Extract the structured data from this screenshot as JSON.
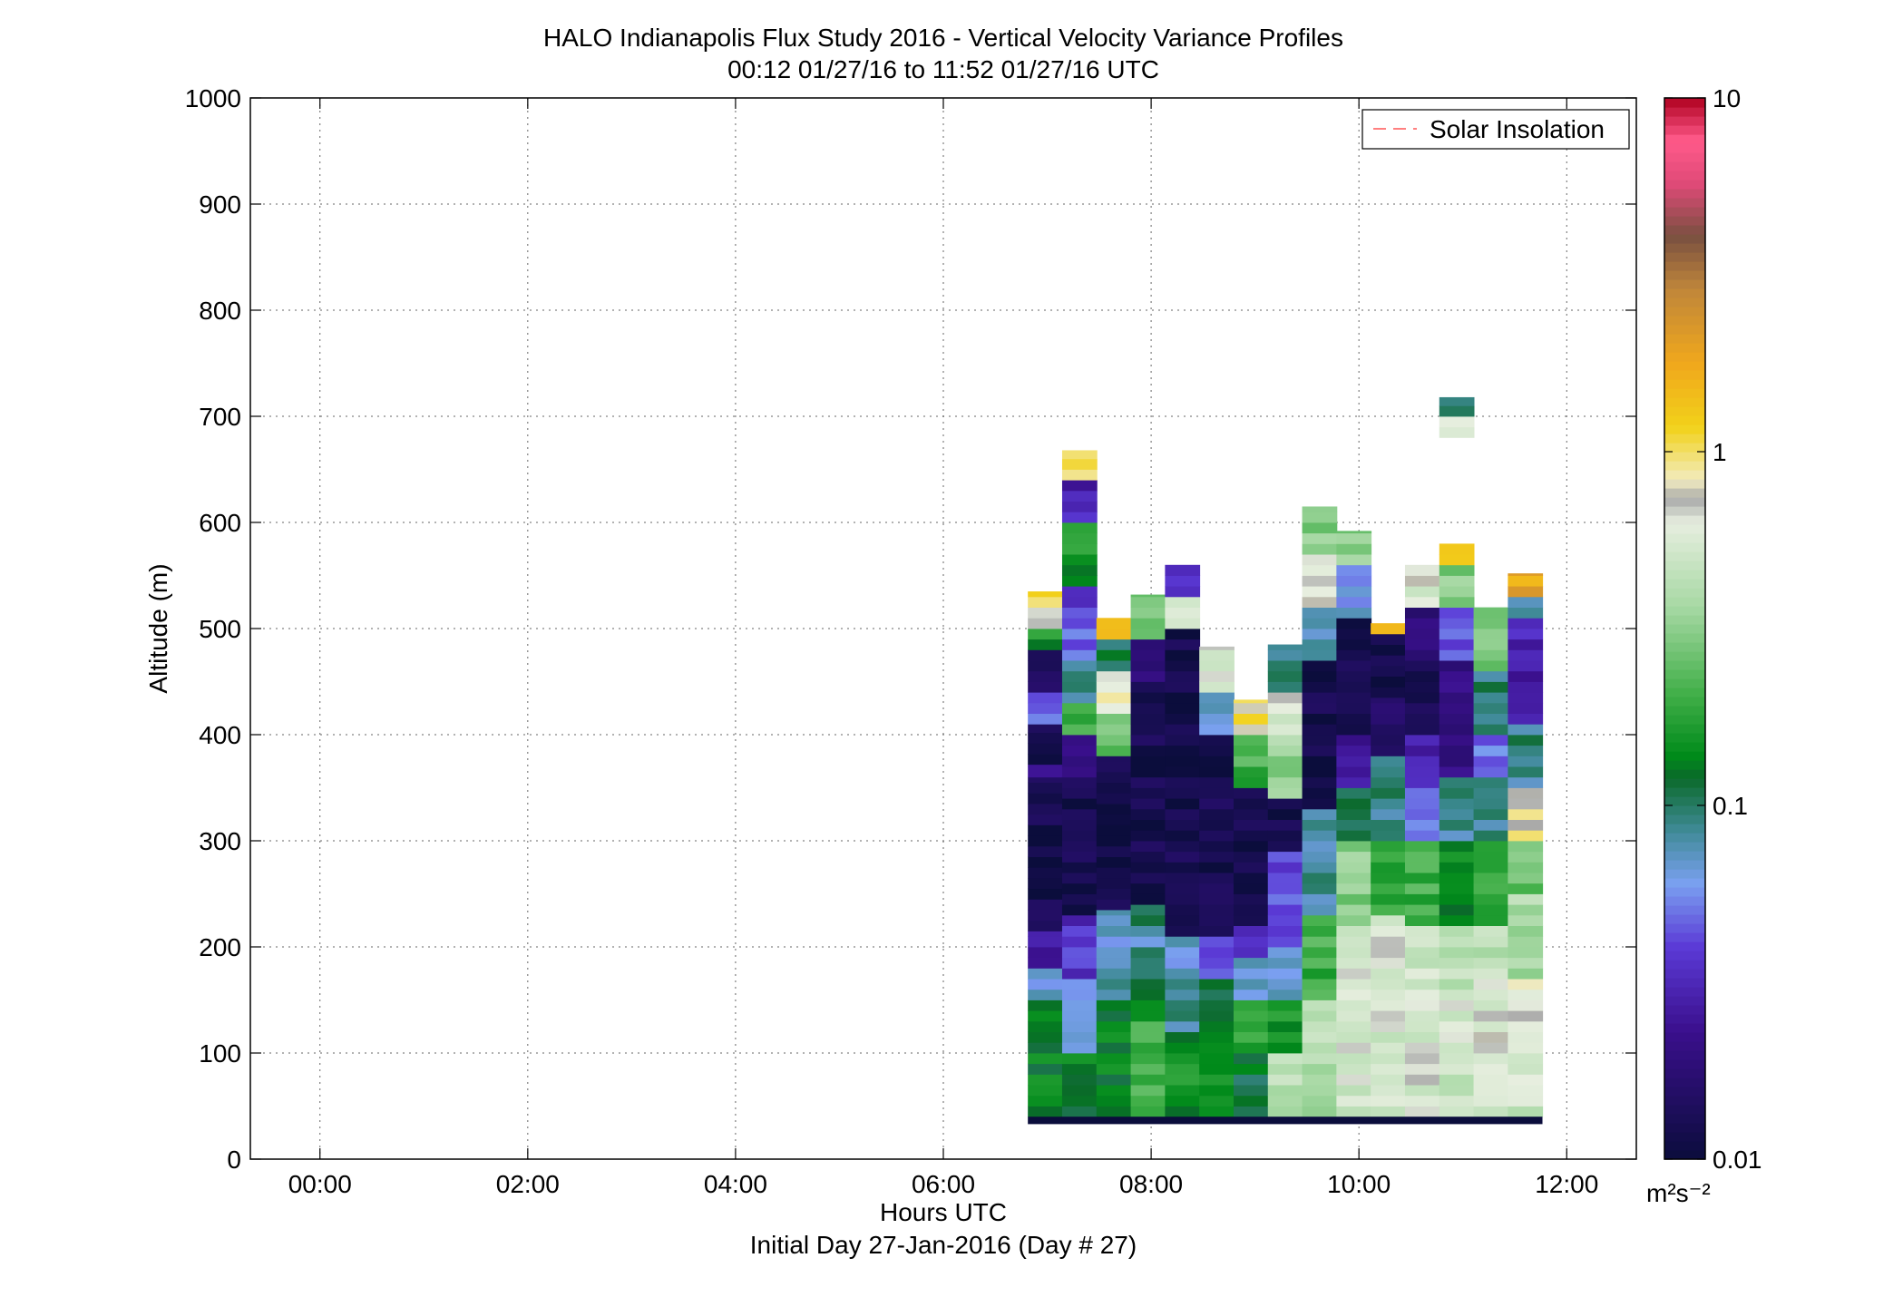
{
  "chart_data": {
    "type": "heatmap",
    "title": "HALO Indianapolis Flux Study 2016 - Vertical Velocity Variance Profiles",
    "subtitle": "00:12 01/27/16 to 11:52 01/27/16  UTC",
    "xlabel": "Hours UTC",
    "xlabel2": "Initial Day 27-Jan-2016 (Day # 27)",
    "ylabel": "Altitude (m)",
    "xlim": [
      -0.67,
      12.67
    ],
    "ylim": [
      0,
      1000
    ],
    "x_ticks": [
      0,
      2,
      4,
      6,
      8,
      10,
      12
    ],
    "x_tick_labels": [
      "00:00",
      "02:00",
      "04:00",
      "06:00",
      "08:00",
      "10:00",
      "12:00"
    ],
    "y_ticks": [
      0,
      100,
      200,
      300,
      400,
      500,
      600,
      700,
      800,
      900,
      1000
    ],
    "y_tick_labels": [
      "0",
      "100",
      "200",
      "300",
      "400",
      "500",
      "600",
      "700",
      "800",
      "900",
      "1000"
    ],
    "grid": true,
    "legend": {
      "position": "top-right",
      "entries": [
        {
          "label": "Solar Insolation",
          "color": "#ff8080",
          "style": "dashed"
        }
      ]
    },
    "colorbar": {
      "scale": "log",
      "range": [
        0.01,
        10
      ],
      "ticks": [
        0.01,
        0.1,
        1,
        10
      ],
      "tick_labels": [
        "0.01",
        "0.1",
        "1",
        "10"
      ],
      "units": "m²s⁻²",
      "colormap": [
        [
          0.0,
          "#0b0d3c"
        ],
        [
          0.12,
          "#3a0f8c"
        ],
        [
          0.2,
          "#5b3ad6"
        ],
        [
          0.26,
          "#7aa0f0"
        ],
        [
          0.31,
          "#3f8a96"
        ],
        [
          0.36,
          "#0a6a2a"
        ],
        [
          0.38,
          "#008a1a"
        ],
        [
          0.44,
          "#43b04a"
        ],
        [
          0.52,
          "#a6d8a3"
        ],
        [
          0.6,
          "#e7eedf"
        ],
        [
          0.623,
          "#a9a9a9"
        ],
        [
          0.64,
          "#f2ecc0"
        ],
        [
          0.69,
          "#f2d21a"
        ],
        [
          0.75,
          "#f0a81c"
        ],
        [
          0.82,
          "#c0863a"
        ],
        [
          0.87,
          "#7a5040"
        ],
        [
          0.92,
          "#e04a78"
        ],
        [
          0.96,
          "#ff5a8a"
        ],
        [
          1.0,
          "#b00020"
        ]
      ]
    },
    "bin_width_hours": 0.333,
    "bin_height_m": 10,
    "surface_band_m": [
      33,
      40
    ],
    "profiles": [
      {
        "t": 6.98,
        "top": 535,
        "cells": [
          [
            40,
            150,
            0.13
          ],
          [
            150,
            180,
            0.07
          ],
          [
            180,
            215,
            0.025
          ],
          [
            215,
            360,
            0.012
          ],
          [
            360,
            372,
            0.02
          ],
          [
            372,
            410,
            0.012
          ],
          [
            410,
            440,
            0.05
          ],
          [
            440,
            480,
            0.015
          ],
          [
            480,
            500,
            0.15
          ],
          [
            500,
            520,
            0.8
          ],
          [
            520,
            535,
            1.2
          ]
        ]
      },
      {
        "t": 7.31,
        "top": 668,
        "cells": [
          [
            40,
            100,
            0.13
          ],
          [
            100,
            140,
            0.08
          ],
          [
            140,
            170,
            0.06
          ],
          [
            170,
            230,
            0.035
          ],
          [
            230,
            360,
            0.012
          ],
          [
            360,
            400,
            0.02
          ],
          [
            400,
            430,
            0.2
          ],
          [
            430,
            470,
            0.09
          ],
          [
            470,
            500,
            0.05
          ],
          [
            500,
            540,
            0.04
          ],
          [
            540,
            600,
            0.15
          ],
          [
            600,
            640,
            0.03
          ],
          [
            640,
            668,
            1.1
          ]
        ]
      },
      {
        "t": 7.64,
        "top": 510,
        "cells": [
          [
            40,
            150,
            0.13
          ],
          [
            150,
            200,
            0.08
          ],
          [
            200,
            235,
            0.07
          ],
          [
            235,
            380,
            0.012
          ],
          [
            380,
            420,
            0.25
          ],
          [
            420,
            460,
            0.7
          ],
          [
            460,
            490,
            0.1
          ],
          [
            490,
            510,
            1.5
          ]
        ]
      },
      {
        "t": 7.97,
        "top": 532,
        "cells": [
          [
            40,
            130,
            0.2
          ],
          [
            130,
            170,
            0.12
          ],
          [
            170,
            210,
            0.08
          ],
          [
            210,
            240,
            0.09
          ],
          [
            240,
            450,
            0.012
          ],
          [
            450,
            490,
            0.02
          ],
          [
            490,
            532,
            0.3
          ]
        ]
      },
      {
        "t": 8.3,
        "top": 560,
        "cells": [
          [
            40,
            120,
            0.15
          ],
          [
            120,
            170,
            0.09
          ],
          [
            170,
            210,
            0.07
          ],
          [
            210,
            260,
            0.012
          ],
          [
            260,
            500,
            0.012
          ],
          [
            500,
            530,
            0.5
          ],
          [
            530,
            560,
            0.03
          ]
        ]
      },
      {
        "t": 8.63,
        "top": 483,
        "cells": [
          [
            40,
            120,
            0.14
          ],
          [
            120,
            170,
            0.1
          ],
          [
            170,
            210,
            0.04
          ],
          [
            210,
            400,
            0.012
          ],
          [
            400,
            440,
            0.07
          ],
          [
            440,
            483,
            0.6
          ]
        ]
      },
      {
        "t": 8.96,
        "top": 433,
        "cells": [
          [
            40,
            100,
            0.12
          ],
          [
            100,
            150,
            0.2
          ],
          [
            150,
            190,
            0.07
          ],
          [
            190,
            220,
            0.03
          ],
          [
            220,
            350,
            0.012
          ],
          [
            350,
            400,
            0.2
          ],
          [
            400,
            433,
            0.9
          ]
        ]
      },
      {
        "t": 9.29,
        "top": 485,
        "cells": [
          [
            40,
            100,
            0.45
          ],
          [
            100,
            150,
            0.15
          ],
          [
            150,
            200,
            0.07
          ],
          [
            200,
            290,
            0.045
          ],
          [
            290,
            340,
            0.012
          ],
          [
            340,
            400,
            0.35
          ],
          [
            400,
            440,
            0.6
          ],
          [
            440,
            485,
            0.1
          ]
        ]
      },
      {
        "t": 9.62,
        "top": 615,
        "cells": [
          [
            40,
            100,
            0.4
          ],
          [
            100,
            150,
            0.5
          ],
          [
            150,
            230,
            0.2
          ],
          [
            230,
            330,
            0.08
          ],
          [
            330,
            470,
            0.012
          ],
          [
            470,
            520,
            0.07
          ],
          [
            520,
            570,
            0.7
          ],
          [
            570,
            615,
            0.3
          ]
        ]
      },
      {
        "t": 9.95,
        "top": 592,
        "cells": [
          [
            40,
            100,
            0.55
          ],
          [
            100,
            160,
            0.6
          ],
          [
            160,
            220,
            0.55
          ],
          [
            220,
            300,
            0.3
          ],
          [
            300,
            350,
            0.1
          ],
          [
            350,
            400,
            0.025
          ],
          [
            400,
            510,
            0.012
          ],
          [
            510,
            560,
            0.06
          ],
          [
            560,
            592,
            0.3
          ]
        ]
      },
      {
        "t": 10.28,
        "top": 505,
        "cells": [
          [
            40,
            100,
            0.5
          ],
          [
            100,
            160,
            0.55
          ],
          [
            160,
            230,
            0.6
          ],
          [
            230,
            300,
            0.2
          ],
          [
            300,
            380,
            0.09
          ],
          [
            380,
            435,
            0.015
          ],
          [
            435,
            495,
            0.012
          ],
          [
            495,
            505,
            1.8
          ]
        ]
      },
      {
        "t": 10.61,
        "top": 560,
        "cells": [
          [
            40,
            100,
            0.6
          ],
          [
            100,
            170,
            0.55
          ],
          [
            170,
            220,
            0.5
          ],
          [
            220,
            300,
            0.2
          ],
          [
            300,
            350,
            0.06
          ],
          [
            350,
            400,
            0.03
          ],
          [
            400,
            470,
            0.012
          ],
          [
            470,
            520,
            0.02
          ],
          [
            520,
            560,
            0.6
          ]
        ]
      },
      {
        "t": 10.94,
        "top": 718,
        "cells": [
          [
            40,
            100,
            0.5
          ],
          [
            100,
            160,
            0.6
          ],
          [
            160,
            220,
            0.45
          ],
          [
            220,
            300,
            0.15
          ],
          [
            300,
            360,
            0.08
          ],
          [
            360,
            420,
            0.02
          ],
          [
            420,
            470,
            0.02
          ],
          [
            470,
            520,
            0.04
          ],
          [
            520,
            560,
            0.3
          ],
          [
            560,
            580,
            1.5
          ],
          [
            680,
            700,
            0.7
          ],
          [
            700,
            718,
            0.08
          ]
        ]
      },
      {
        "t": 11.27,
        "top": 520,
        "cells": [
          [
            40,
            100,
            0.55
          ],
          [
            100,
            170,
            0.6
          ],
          [
            170,
            220,
            0.45
          ],
          [
            220,
            300,
            0.2
          ],
          [
            300,
            360,
            0.09
          ],
          [
            360,
            400,
            0.05
          ],
          [
            400,
            460,
            0.09
          ],
          [
            460,
            500,
            0.3
          ],
          [
            500,
            520,
            0.3
          ]
        ]
      },
      {
        "t": 11.6,
        "top": 552,
        "cells": [
          [
            40,
            100,
            0.5
          ],
          [
            100,
            170,
            0.65
          ],
          [
            170,
            250,
            0.4
          ],
          [
            250,
            300,
            0.25
          ],
          [
            300,
            350,
            0.8
          ],
          [
            350,
            410,
            0.09
          ],
          [
            410,
            460,
            0.025
          ],
          [
            460,
            510,
            0.03
          ],
          [
            510,
            530,
            0.09
          ],
          [
            530,
            552,
            1.8
          ]
        ]
      }
    ]
  }
}
